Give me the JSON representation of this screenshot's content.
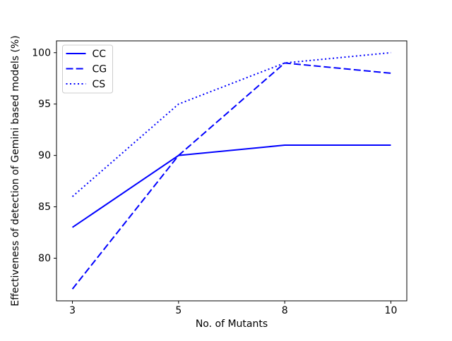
{
  "chart_data": {
    "type": "line",
    "title": "",
    "xlabel": "No. of Mutants",
    "ylabel": "Effectiveness of detection of Gemini based models (%)",
    "categories": [
      "3",
      "5",
      "8",
      "10"
    ],
    "series": [
      {
        "name": "CC",
        "style": "solid",
        "values": [
          83,
          90,
          91,
          91
        ]
      },
      {
        "name": "CG",
        "style": "dashed",
        "values": [
          77,
          90,
          99,
          98
        ]
      },
      {
        "name": "CS",
        "style": "dotted",
        "values": [
          86,
          95,
          99,
          100
        ]
      }
    ],
    "yticks": [
      80,
      85,
      90,
      95,
      100
    ],
    "ylim": [
      75.85,
      101.15
    ],
    "xlim": [
      -0.15,
      3.15
    ],
    "grid": false,
    "legend_position": "upper left",
    "line_color": "#0000ff",
    "axis_color": "#000000",
    "legend_border_color": "#cccccc"
  }
}
